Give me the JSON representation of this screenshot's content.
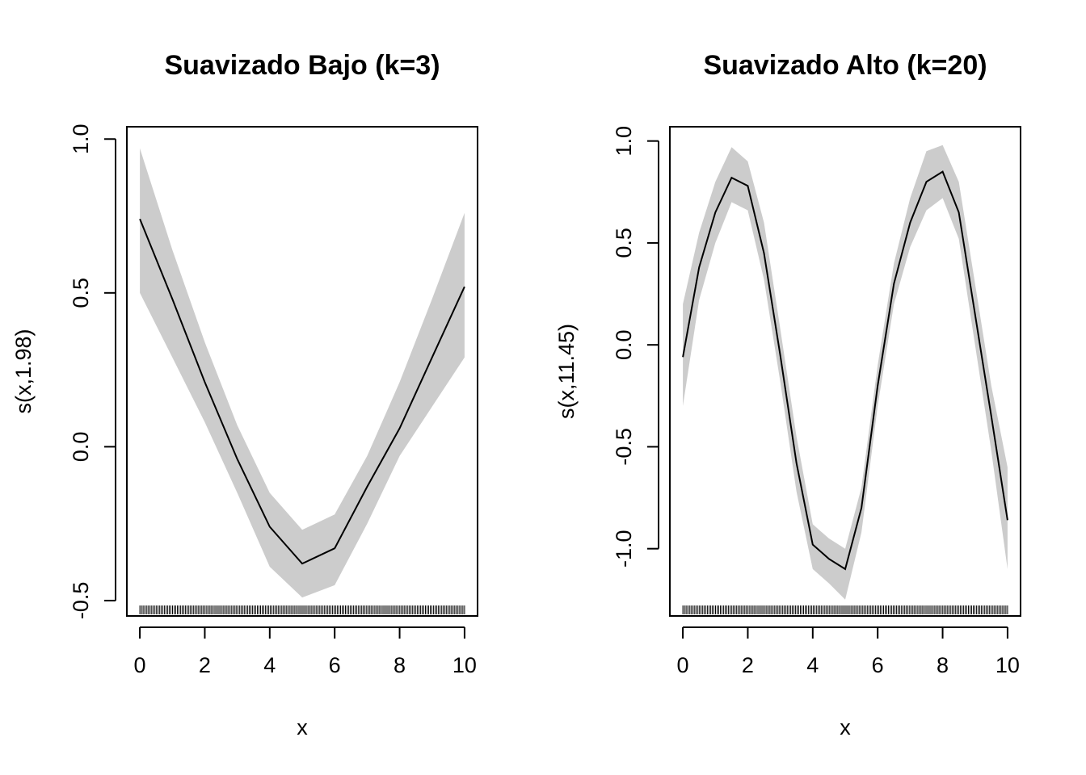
{
  "chart_data": [
    {
      "type": "line",
      "title": "Suavizado Bajo (k=3)",
      "xlabel": "x",
      "ylabel": "s(x,1.98)",
      "xlim": [
        -0.4,
        10.4
      ],
      "ylim": [
        -0.55,
        1.04
      ],
      "x_ticks": [
        0,
        2,
        4,
        6,
        8,
        10
      ],
      "x_tick_labels": [
        "0",
        "2",
        "4",
        "6",
        "8",
        "10"
      ],
      "y_ticks": [
        -0.5,
        0.0,
        0.5,
        1.0
      ],
      "y_tick_labels": [
        "-0.5",
        "0.0",
        "0.5",
        "1.0"
      ],
      "rug_range": [
        0,
        10
      ],
      "rug_count": 200,
      "colors": {
        "line": "#000000",
        "band": "#cccccc"
      },
      "series": [
        {
          "x": [
            0,
            1,
            2,
            3,
            4,
            5,
            6,
            7,
            8,
            9,
            10
          ],
          "fit": [
            0.74,
            0.48,
            0.21,
            -0.04,
            -0.26,
            -0.38,
            -0.33,
            -0.13,
            0.06,
            0.29,
            0.52
          ],
          "upper": [
            0.97,
            0.64,
            0.34,
            0.07,
            -0.15,
            -0.27,
            -0.22,
            -0.03,
            0.21,
            0.48,
            0.76
          ],
          "lower": [
            0.5,
            0.29,
            0.08,
            -0.15,
            -0.39,
            -0.49,
            -0.45,
            -0.25,
            -0.03,
            0.13,
            0.29
          ]
        }
      ]
    },
    {
      "type": "line",
      "title": "Suavizado Alto (k=20)",
      "xlabel": "x",
      "ylabel": "s(x,11.45)",
      "xlim": [
        -0.4,
        10.4
      ],
      "ylim": [
        -1.33,
        1.07
      ],
      "x_ticks": [
        0,
        2,
        4,
        6,
        8,
        10
      ],
      "x_tick_labels": [
        "0",
        "2",
        "4",
        "6",
        "8",
        "10"
      ],
      "y_ticks": [
        -1.0,
        -0.5,
        0.0,
        0.5,
        1.0
      ],
      "y_tick_labels": [
        "-1.0",
        "-0.5",
        "0.0",
        "0.5",
        "1.0"
      ],
      "rug_range": [
        0,
        10
      ],
      "rug_count": 200,
      "colors": {
        "line": "#000000",
        "band": "#cccccc"
      },
      "series": [
        {
          "x": [
            0,
            0.5,
            1,
            1.5,
            2,
            2.5,
            3,
            3.5,
            4,
            4.5,
            5,
            5.5,
            6,
            6.5,
            7,
            7.5,
            8,
            8.5,
            9,
            9.5,
            10
          ],
          "fit": [
            -0.06,
            0.38,
            0.65,
            0.82,
            0.78,
            0.45,
            -0.05,
            -0.58,
            -0.98,
            -1.05,
            -1.1,
            -0.8,
            -0.2,
            0.3,
            0.6,
            0.8,
            0.85,
            0.65,
            0.15,
            -0.35,
            -0.86
          ],
          "upper": [
            0.2,
            0.55,
            0.8,
            0.97,
            0.9,
            0.6,
            0.08,
            -0.45,
            -0.88,
            -0.95,
            -1.0,
            -0.7,
            -0.1,
            0.4,
            0.72,
            0.95,
            0.98,
            0.8,
            0.3,
            -0.2,
            -0.6
          ],
          "lower": [
            -0.3,
            0.22,
            0.5,
            0.7,
            0.66,
            0.32,
            -0.18,
            -0.72,
            -1.1,
            -1.17,
            -1.25,
            -0.92,
            -0.3,
            0.2,
            0.48,
            0.66,
            0.72,
            0.52,
            0.0,
            -0.52,
            -1.1
          ]
        }
      ]
    }
  ]
}
